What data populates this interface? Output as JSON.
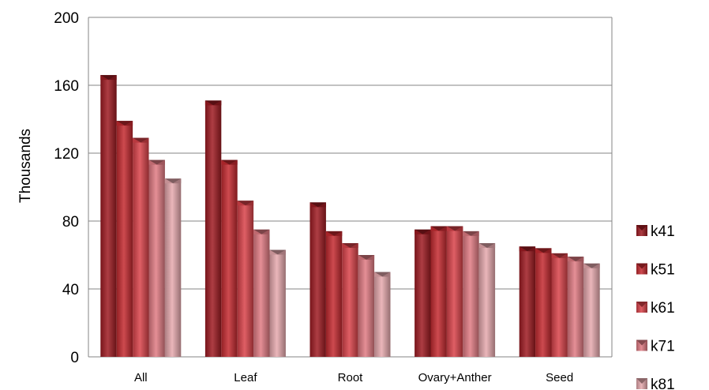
{
  "chart_data": {
    "type": "bar",
    "title": "",
    "xlabel": "",
    "ylabel": "Thousands",
    "ylim": [
      0,
      200
    ],
    "yticks": [
      0,
      40,
      80,
      120,
      160,
      200
    ],
    "categories": [
      "All",
      "Leaf",
      "Root",
      "Ovary+Anther",
      "Seed"
    ],
    "grid": true,
    "legend": "right",
    "series": [
      {
        "name": "k41",
        "color": "#9e1b22",
        "values": [
          166,
          151,
          91,
          75,
          65
        ]
      },
      {
        "name": "k51",
        "color": "#c42a30",
        "values": [
          139,
          116,
          74,
          77,
          64
        ]
      },
      {
        "name": "k61",
        "color": "#d9434a",
        "values": [
          129,
          92,
          67,
          77,
          61
        ]
      },
      {
        "name": "k71",
        "color": "#e07b83",
        "values": [
          116,
          75,
          60,
          74,
          59
        ]
      },
      {
        "name": "k81",
        "color": "#e6a9ae",
        "values": [
          105,
          63,
          50,
          67,
          55
        ]
      }
    ]
  }
}
